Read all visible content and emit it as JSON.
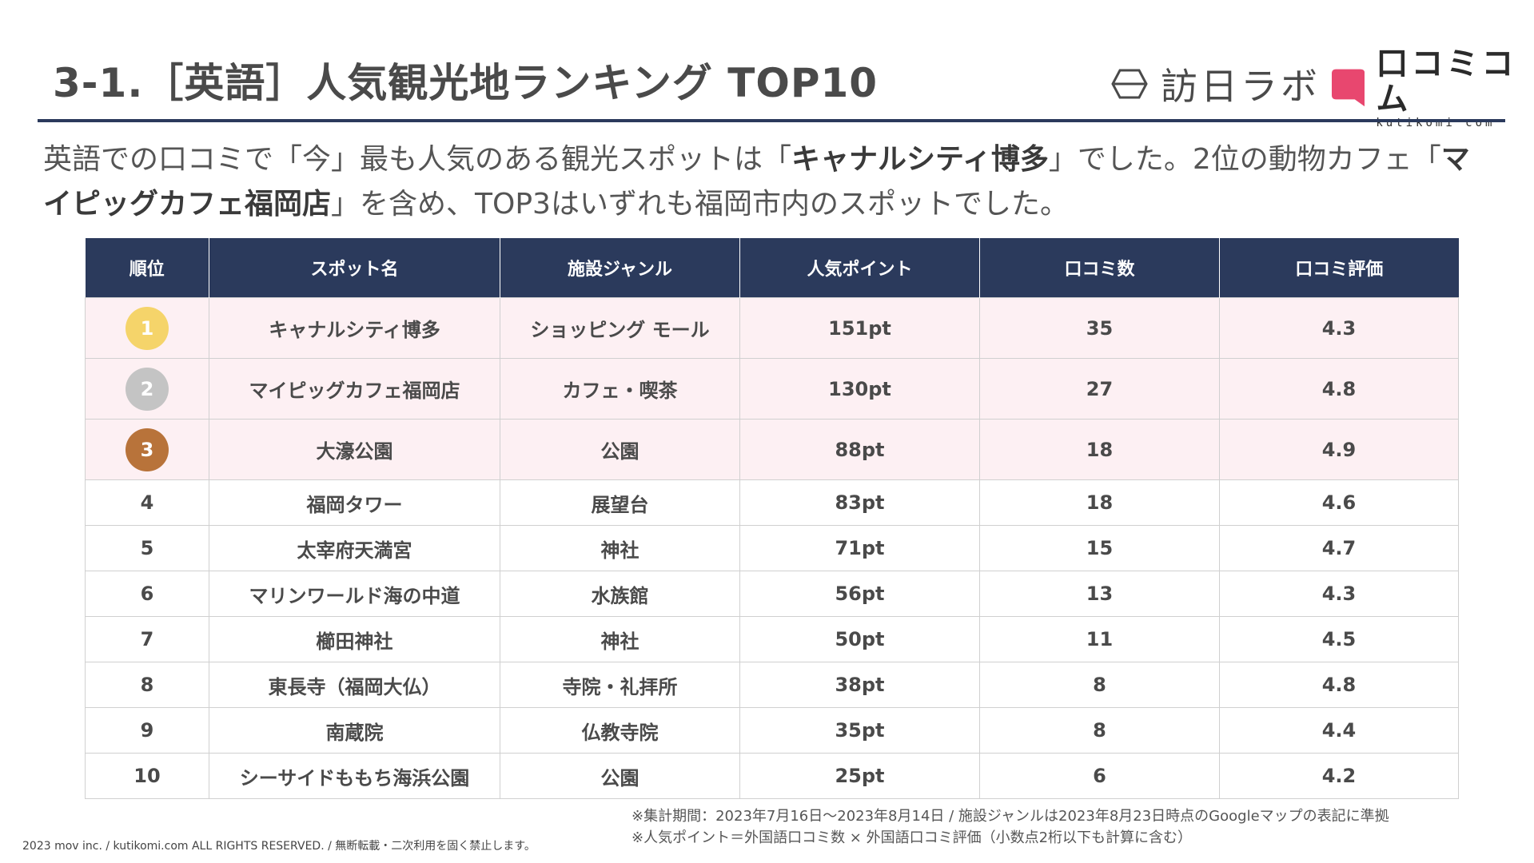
{
  "title": "3-1.［英語］人気観光地ランキング TOP10",
  "logos": {
    "houjin_text": "訪日ラボ",
    "kutikomi_text": "口コミコム",
    "kutikomi_sub": "kutikomi com",
    "houjin_icon": "hexagon-outline-icon",
    "kutikomi_icon": "pink-speech-bubble-icon"
  },
  "lead": {
    "p1": "英語での口コミで「今」最も人気のある観光スポットは「",
    "b1": "キャナルシティ博多",
    "p2": "」でした。2位の動物カフェ「",
    "b2": "マイピッグカフェ福岡店",
    "p3": "」を含め、TOP3はいずれも福岡市内のスポットでした。"
  },
  "table": {
    "headers": [
      "順位",
      "スポット名",
      "施設ジャンル",
      "人気ポイント",
      "口コミ数",
      "口コミ評価"
    ],
    "rows": [
      {
        "rank": "1",
        "name": "キャナルシティ博多",
        "genre": "ショッピング モール",
        "points": "151pt",
        "count": "35",
        "rating": "4.3"
      },
      {
        "rank": "2",
        "name": "マイピッグカフェ福岡店",
        "genre": "カフェ・喫茶",
        "points": "130pt",
        "count": "27",
        "rating": "4.8"
      },
      {
        "rank": "3",
        "name": "大濠公園",
        "genre": "公園",
        "points": "88pt",
        "count": "18",
        "rating": "4.9"
      },
      {
        "rank": "4",
        "name": "福岡タワー",
        "genre": "展望台",
        "points": "83pt",
        "count": "18",
        "rating": "4.6"
      },
      {
        "rank": "5",
        "name": "太宰府天満宮",
        "genre": "神社",
        "points": "71pt",
        "count": "15",
        "rating": "4.7"
      },
      {
        "rank": "6",
        "name": "マリンワールド海の中道",
        "genre": "水族館",
        "points": "56pt",
        "count": "13",
        "rating": "4.3"
      },
      {
        "rank": "7",
        "name": "櫛田神社",
        "genre": "神社",
        "points": "50pt",
        "count": "11",
        "rating": "4.5"
      },
      {
        "rank": "8",
        "name": "東長寺（福岡大仏）",
        "genre": "寺院・礼拝所",
        "points": "38pt",
        "count": "8",
        "rating": "4.8"
      },
      {
        "rank": "9",
        "name": "南蔵院",
        "genre": "仏教寺院",
        "points": "35pt",
        "count": "8",
        "rating": "4.4"
      },
      {
        "rank": "10",
        "name": "シーサイドももち海浜公園",
        "genre": "公園",
        "points": "25pt",
        "count": "6",
        "rating": "4.2"
      }
    ]
  },
  "colors": {
    "header_bg": "#2b3a5c",
    "top_row_bg": "#fdf0f3",
    "gold": "#f5d46a",
    "silver": "#c4c4c4",
    "bronze": "#b8733a",
    "brand_pink": "#e8476f"
  },
  "footnotes": {
    "line1": "※集計期間：2023年7月16日〜2023年8月14日 / 施設ジャンルは2023年8月23日時点のGoogleマップの表記に準拠",
    "line2": "※人気ポイント＝外国語口コミ数 × 外国語口コミ評価（小数点2桁以下も計算に含む）"
  },
  "copyright": "2023 mov inc. / kutikomi.com ALL RIGHTS RESERVED. / 無断転載・二次利用を固く禁止します。"
}
